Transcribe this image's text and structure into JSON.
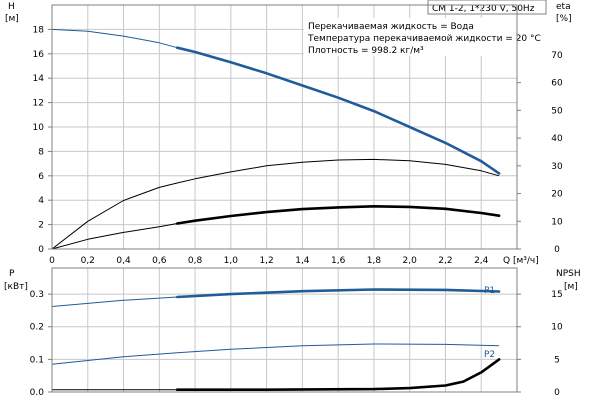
{
  "header": {
    "model": "CM 1-2, 1*230 V, 50Hz",
    "annotations": [
      "Перекачиваемая жидкость = Вода",
      "Температура перекачиваемой жидкости = 20 °C",
      "Плотность = 998.2 кг/м³"
    ]
  },
  "colors": {
    "blue": "#1f5c99",
    "black": "#000000",
    "grid": "#c8c8c8",
    "frame": "#808080"
  },
  "chart_data": [
    {
      "type": "line",
      "x_axis": {
        "label": "Q [м³/ч]",
        "min": 0,
        "max": 2.6,
        "ticks": [
          0,
          0.2,
          0.4,
          0.6,
          0.8,
          1.0,
          1.2,
          1.4,
          1.6,
          1.8,
          2.0,
          2.2,
          2.4,
          2.6
        ],
        "tick_labels": [
          "0",
          "0,2",
          "0,4",
          "0,6",
          "0,8",
          "1,0",
          "1,2",
          "1,4",
          "1,6",
          "1,8",
          "2,0",
          "2,2",
          "2,4",
          ""
        ]
      },
      "y_left": {
        "label_line1": "H",
        "label_line2": "[м]",
        "min": 0,
        "max": 20,
        "ticks": [
          0,
          2,
          4,
          6,
          8,
          10,
          12,
          14,
          16,
          18
        ]
      },
      "y_right": {
        "label_line1": "eta",
        "label_line2": "[%]",
        "min": 0,
        "max": 88,
        "ticks": [
          0,
          10,
          20,
          30,
          40,
          50,
          60,
          70
        ]
      },
      "grid": true,
      "series": [
        {
          "axis": "left",
          "color": "blue",
          "x": [
            0,
            0.2,
            0.4,
            0.6,
            0.7,
            0.8,
            1.0,
            1.2,
            1.4,
            1.6,
            1.8,
            2.0,
            2.2,
            2.4,
            2.5
          ],
          "y": [
            18,
            17.85,
            17.45,
            16.9,
            16.5,
            16.15,
            15.3,
            14.4,
            13.4,
            12.4,
            11.3,
            10.0,
            8.7,
            7.2,
            6.2
          ],
          "bold_from": 0.7
        },
        {
          "axis": "right",
          "color": "black",
          "x": [
            0,
            0.2,
            0.4,
            0.6,
            0.7,
            0.8,
            1.0,
            1.2,
            1.4,
            1.6,
            1.8,
            2.0,
            2.2,
            2.4,
            2.5
          ],
          "y": [
            0,
            10,
            17.5,
            22.2,
            23.8,
            25.3,
            27.8,
            30.0,
            31.3,
            32.1,
            32.3,
            31.8,
            30.5,
            28.2,
            26.4
          ],
          "bold_from": 99
        },
        {
          "axis": "right",
          "color": "black",
          "x": [
            0,
            0.2,
            0.4,
            0.6,
            0.7,
            0.8,
            1.0,
            1.2,
            1.4,
            1.6,
            1.8,
            2.0,
            2.2,
            2.4,
            2.5
          ],
          "y": [
            0,
            3.5,
            6.0,
            8.0,
            9.2,
            10.2,
            11.9,
            13.3,
            14.4,
            15.0,
            15.4,
            15.2,
            14.5,
            13.0,
            12.0
          ],
          "bold_from": 0.7
        }
      ]
    },
    {
      "type": "line",
      "x_axis": {
        "min": 0,
        "max": 2.6
      },
      "y_left": {
        "label_line1": "P",
        "label_line2": "[кВт]",
        "min": 0,
        "max": 0.38,
        "ticks": [
          0,
          0.1,
          0.2,
          0.3
        ],
        "tick_labels": [
          "0.0",
          "0.1",
          "0.2",
          "0.3"
        ]
      },
      "y_right": {
        "label_line1": "NPSH",
        "label_line2": "[м]",
        "min": 0,
        "max": 19,
        "ticks": [
          0,
          5,
          10,
          15
        ]
      },
      "grid": true,
      "series": [
        {
          "name": "P1",
          "axis": "left",
          "color": "blue",
          "x": [
            0,
            0.4,
            0.7,
            1.0,
            1.4,
            1.8,
            2.2,
            2.5
          ],
          "y": [
            0.262,
            0.281,
            0.291,
            0.3,
            0.309,
            0.314,
            0.313,
            0.308
          ],
          "bold_from": 0.7
        },
        {
          "name": "P2",
          "axis": "left",
          "color": "blue",
          "x": [
            0,
            0.4,
            0.7,
            1.0,
            1.4,
            1.8,
            2.2,
            2.5
          ],
          "y": [
            0.085,
            0.108,
            0.12,
            0.131,
            0.142,
            0.147,
            0.146,
            0.142
          ],
          "bold_from": 99
        },
        {
          "axis": "right",
          "color": "black",
          "x": [
            0,
            0.7,
            1.2,
            1.8,
            2.0,
            2.2,
            2.3,
            2.4,
            2.5
          ],
          "y": [
            0.35,
            0.35,
            0.35,
            0.45,
            0.6,
            1.0,
            1.6,
            3.0,
            5.0
          ],
          "bold_from": 0.7
        }
      ]
    }
  ]
}
